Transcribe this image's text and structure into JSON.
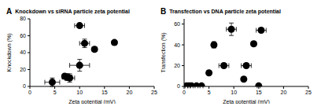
{
  "chart_data": [
    {
      "type": "scatter",
      "panel_label": "A",
      "title": "Knockdown vs siRNA particle zeta potential",
      "x_label": "Zeta potential (mV)",
      "y_label": "Knockdown (%)",
      "xlim": [
        0,
        25
      ],
      "xticks": [
        0,
        5,
        10,
        15,
        20,
        25
      ],
      "ylim": [
        0,
        80
      ],
      "yticks": [
        0,
        20,
        40,
        60,
        80
      ],
      "color": "#000000",
      "marker": "circle",
      "x": [
        4.5,
        7,
        7.5,
        8,
        10,
        10,
        11,
        13,
        17
      ],
      "y": [
        5,
        12,
        11,
        10,
        25,
        72,
        51,
        44,
        52
      ],
      "x_error": [
        1.5,
        0.5,
        1,
        1,
        2,
        1,
        1,
        0.5,
        0.5
      ],
      "y_error": [
        5,
        3,
        4,
        5,
        7,
        1,
        5,
        1,
        1
      ]
    },
    {
      "type": "scatter",
      "panel_label": "B",
      "title": "Transfection vs DNA particle zeta potential",
      "x_label": "Zeta potential (mV)",
      "y_label": "Transfection (%)",
      "xlim": [
        0,
        25
      ],
      "xticks": [
        0,
        5,
        10,
        15,
        20,
        25
      ],
      "ylim": [
        0,
        65
      ],
      "yticks": [
        0,
        20,
        40,
        60
      ],
      "color": "#000000",
      "marker": "circle",
      "x": [
        0.5,
        1,
        1.5,
        2.5,
        3.5,
        5,
        6,
        8,
        9.5,
        12,
        12.5,
        14,
        15,
        15.5
      ],
      "y": [
        0.5,
        0.5,
        0.5,
        0.5,
        0.5,
        13,
        40,
        20,
        55,
        7,
        20,
        41,
        0.5,
        54
      ],
      "x_error": [
        0.3,
        0.3,
        0.3,
        0.3,
        0.3,
        0.3,
        0.5,
        1,
        1,
        0.3,
        1,
        0.5,
        0.3,
        1
      ],
      "y_error": [
        0.3,
        0.3,
        0.3,
        0.3,
        0.3,
        1,
        3,
        1,
        6,
        1,
        2,
        1,
        0.3,
        2
      ]
    }
  ]
}
